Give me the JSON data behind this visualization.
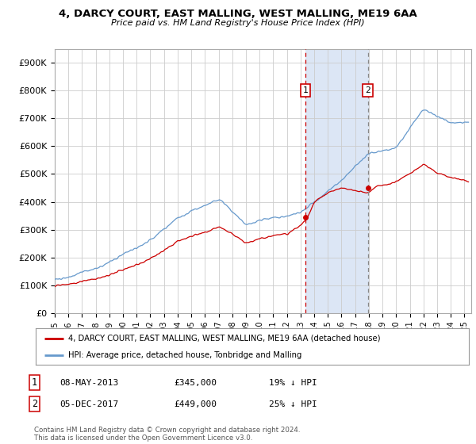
{
  "title1": "4, DARCY COURT, EAST MALLING, WEST MALLING, ME19 6AA",
  "title2": "Price paid vs. HM Land Registry's House Price Index (HPI)",
  "xlim_start": 1995.0,
  "xlim_end": 2025.5,
  "ylim_bottom": 0,
  "ylim_top": 950000,
  "yticks": [
    0,
    100000,
    200000,
    300000,
    400000,
    500000,
    600000,
    700000,
    800000,
    900000
  ],
  "ytick_labels": [
    "£0",
    "£100K",
    "£200K",
    "£300K",
    "£400K",
    "£500K",
    "£600K",
    "£700K",
    "£800K",
    "£900K"
  ],
  "sale1_x": 2013.37,
  "sale1_y": 345000,
  "sale2_x": 2017.92,
  "sale2_y": 449000,
  "highlight_color": "#dce6f5",
  "vline1_color": "#cc0000",
  "vline2_color": "#888888",
  "hpi_color": "#6699cc",
  "sale_color": "#cc0000",
  "grid_color": "#cccccc",
  "bg_color": "#ffffff",
  "legend_label1": "4, DARCY COURT, EAST MALLING, WEST MALLING, ME19 6AA (detached house)",
  "legend_label2": "HPI: Average price, detached house, Tonbridge and Malling",
  "table_row1": [
    "1",
    "08-MAY-2013",
    "£345,000",
    "19% ↓ HPI"
  ],
  "table_row2": [
    "2",
    "05-DEC-2017",
    "£449,000",
    "25% ↓ HPI"
  ],
  "footer": "Contains HM Land Registry data © Crown copyright and database right 2024.\nThis data is licensed under the Open Government Licence v3.0."
}
